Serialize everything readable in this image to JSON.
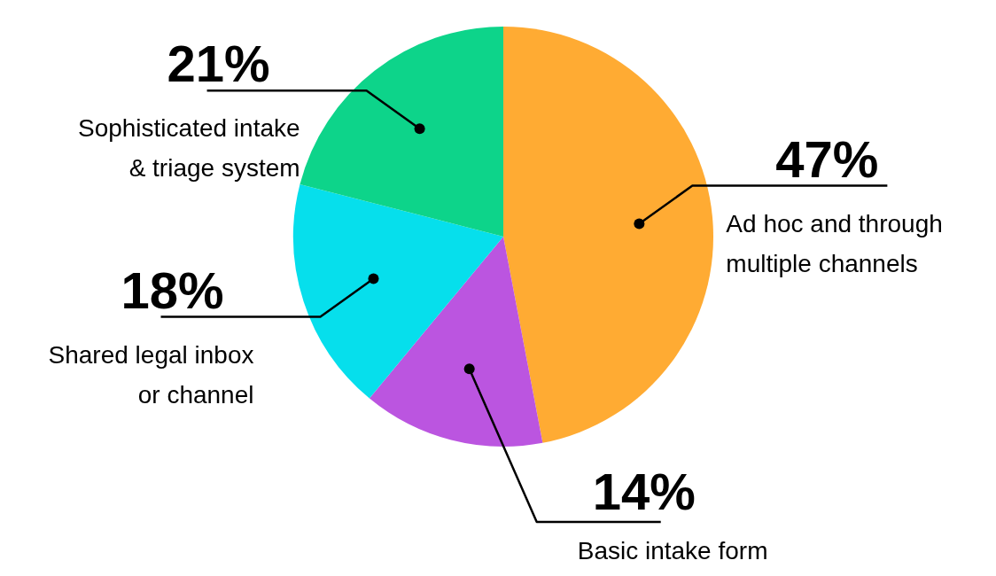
{
  "chart_data": {
    "type": "pie",
    "categories": [
      "Ad hoc and through multiple channels",
      "Basic intake form",
      "Shared legal inbox or channel",
      "Sophisticated intake & triage system"
    ],
    "values": [
      47,
      14,
      18,
      21
    ],
    "value_labels": [
      "47%",
      "14%",
      "18%",
      "21%"
    ],
    "colors": [
      "#ffab33",
      "#bb55e0",
      "#06dfec",
      "#0dd48a"
    ],
    "legend": false
  }
}
